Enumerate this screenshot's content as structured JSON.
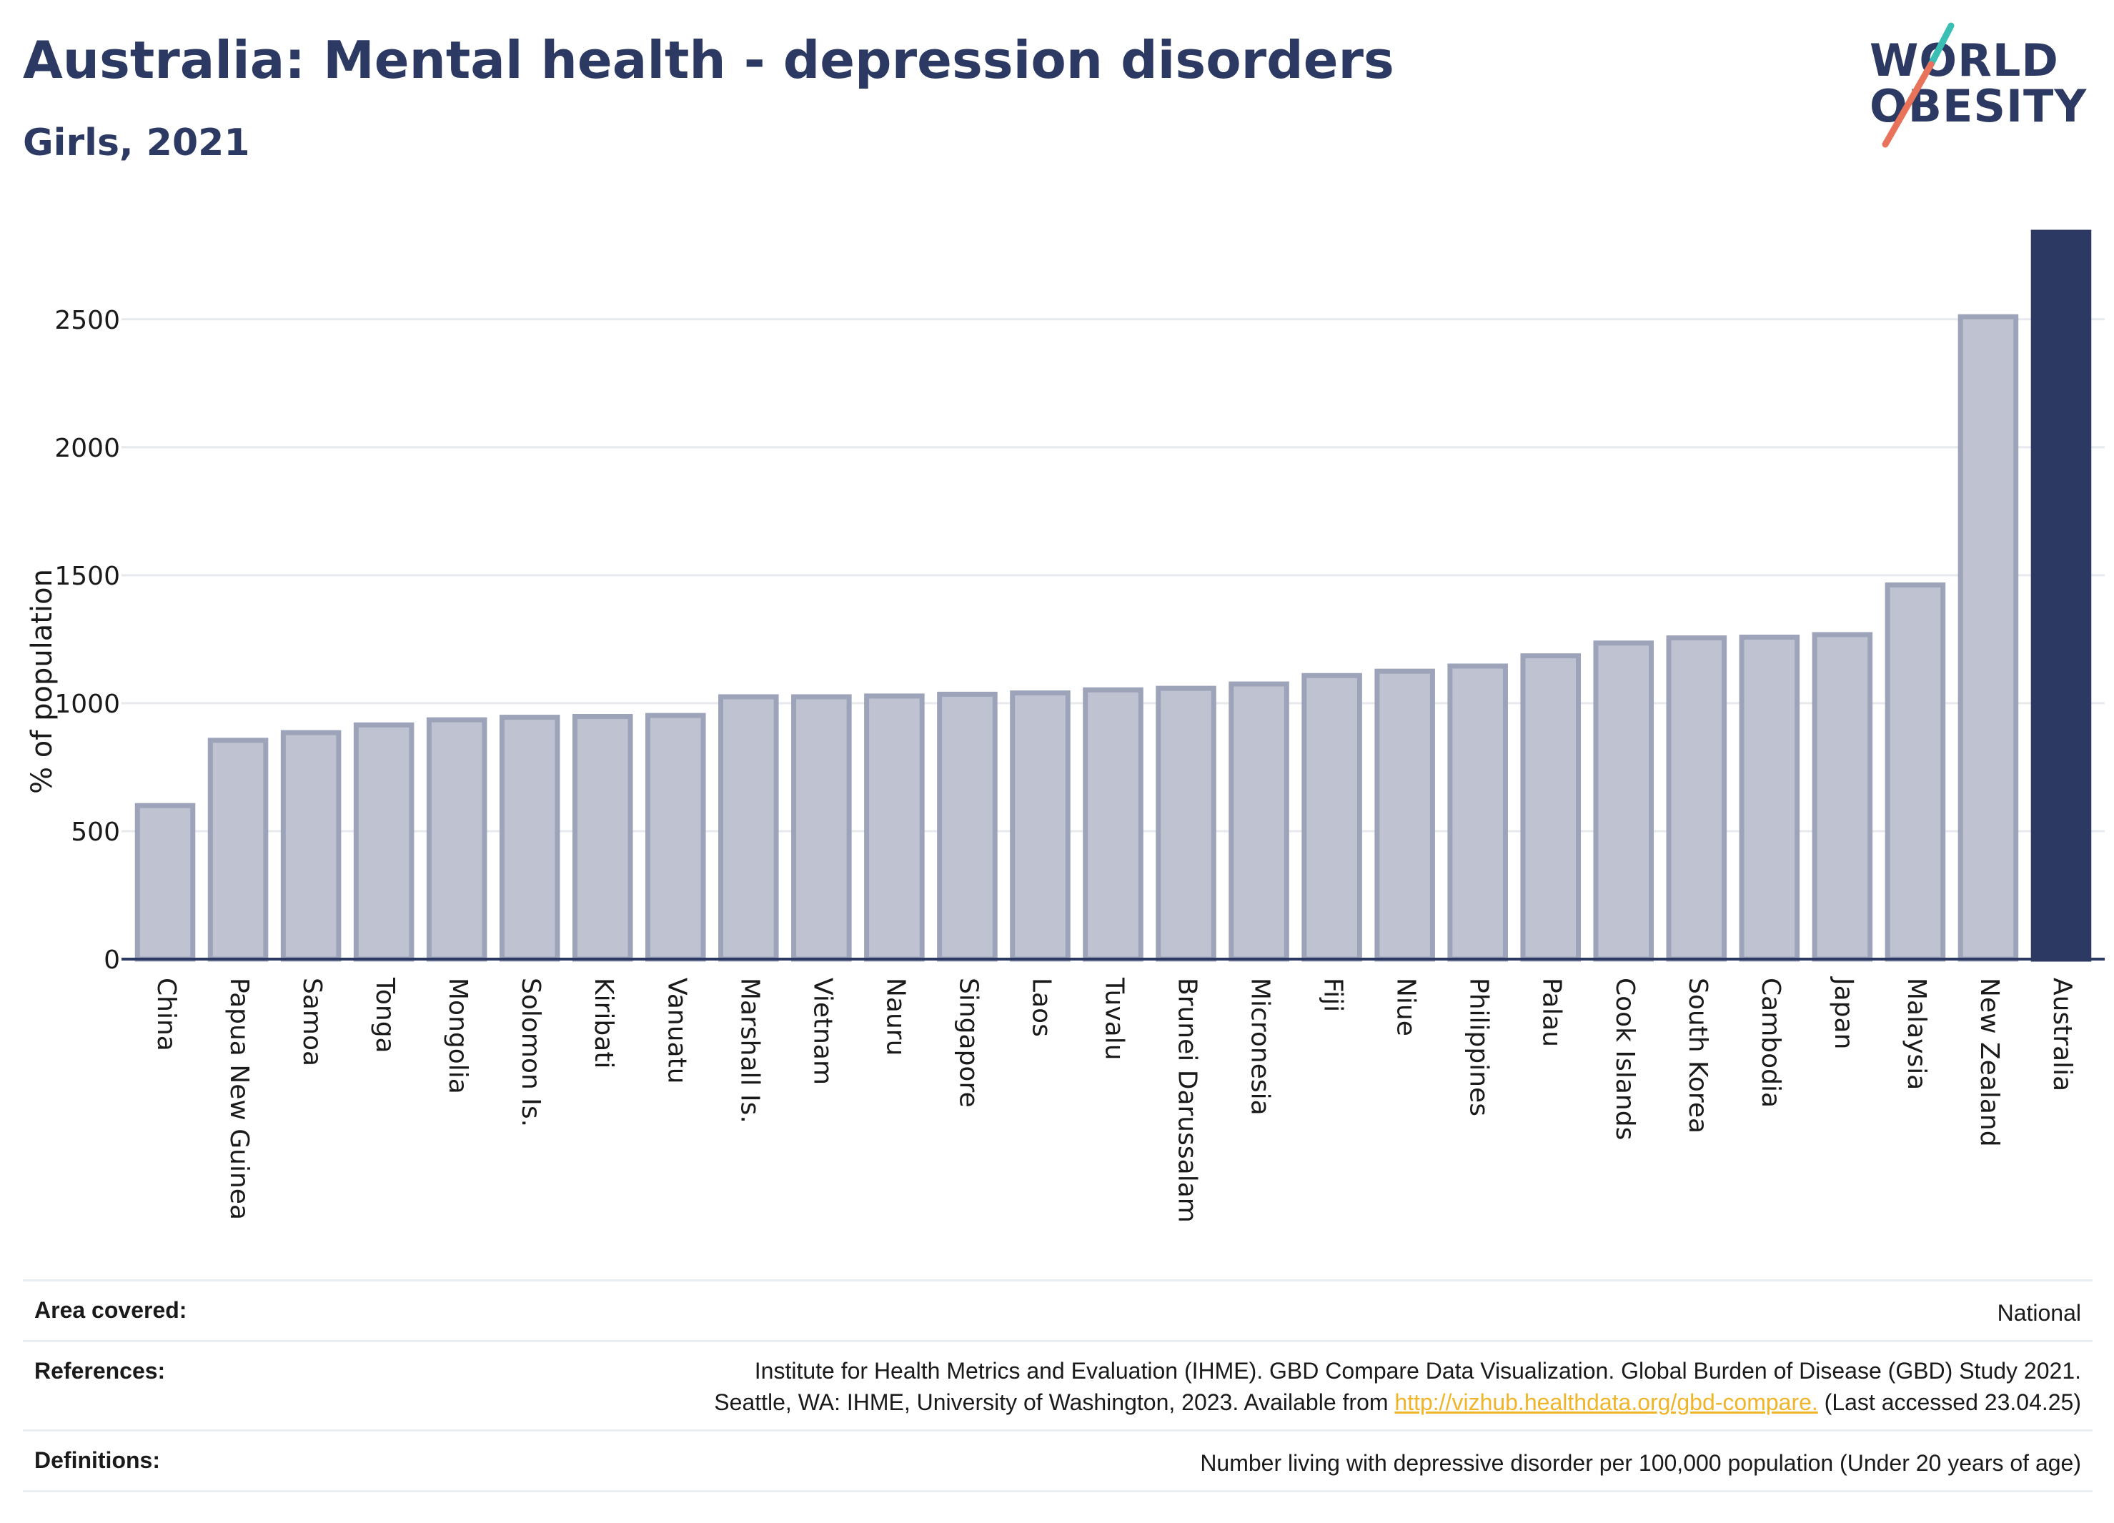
{
  "header": {
    "title": "Australia: Mental health - depression disorders",
    "subtitle": "Girls, 2021"
  },
  "logo": {
    "line1": "WORLD",
    "line2": "OBESITY",
    "accent_colors": [
      "#3bbfb5",
      "#e8735a"
    ]
  },
  "chart_data": {
    "type": "bar",
    "ylabel": "% of population",
    "ylim": [
      0,
      2840
    ],
    "yticks": [
      0,
      500,
      1000,
      1500,
      2000,
      2500
    ],
    "grid": true,
    "categories": [
      "China",
      "Papua New Guinea",
      "Samoa",
      "Tonga",
      "Mongolia",
      "Solomon Is.",
      "Kiribati",
      "Vanuatu",
      "Marshall Is.",
      "Vietnam",
      "Nauru",
      "Singapore",
      "Laos",
      "Tuvalu",
      "Brunei Darussalam",
      "Micronesia",
      "Fiji",
      "Niue",
      "Philippines",
      "Palau",
      "Cook Islands",
      "South Korea",
      "Cambodia",
      "Japan",
      "Malaysia",
      "New Zealand",
      "Australia"
    ],
    "values": [
      600,
      855,
      885,
      915,
      935,
      945,
      948,
      952,
      1025,
      1025,
      1028,
      1035,
      1040,
      1052,
      1058,
      1075,
      1108,
      1125,
      1145,
      1185,
      1235,
      1255,
      1258,
      1268,
      1462,
      2510,
      2840
    ],
    "highlight": "Australia",
    "colors": {
      "bar_fill": "#bfc3d1",
      "bar_stroke": "#9da3b9",
      "highlight_fill": "#2c3a63",
      "grid": "#e6e9ee",
      "axis": "#2c3a63"
    }
  },
  "footer": {
    "area_label": "Area covered:",
    "area_value": "National",
    "references_label": "References:",
    "references_line1": "Institute for Health Metrics and Evaluation (IHME). GBD Compare Data Visualization. Global Burden of Disease (GBD) Study 2021.",
    "references_line2_pre": "Seattle, WA: IHME, University of Washington, 2023. Available from ",
    "references_link": "http://vizhub.healthdata.org/gbd-compare.",
    "references_line2_post": " (Last accessed 23.04.25)",
    "definitions_label": "Definitions:",
    "definitions_value": "Number living with depressive disorder per 100,000 population (Under 20 years of age)"
  }
}
